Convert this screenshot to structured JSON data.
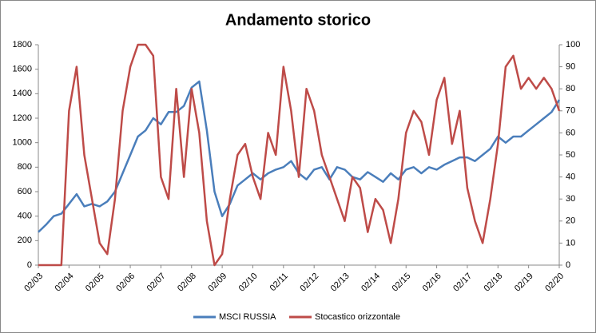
{
  "chart_data": {
    "type": "line",
    "title": "Andamento storico",
    "categories": [
      "02/03",
      null,
      null,
      null,
      "02/04",
      null,
      null,
      null,
      "02/05",
      null,
      null,
      null,
      "02/06",
      null,
      null,
      null,
      "02/07",
      null,
      null,
      null,
      "02/08",
      null,
      null,
      null,
      "02/09",
      null,
      null,
      null,
      "02/10",
      null,
      null,
      null,
      "02/11",
      null,
      null,
      null,
      "02/12",
      null,
      null,
      null,
      "02/13",
      null,
      null,
      null,
      "02/14",
      null,
      null,
      null,
      "02/15",
      null,
      null,
      null,
      "02/16",
      null,
      null,
      null,
      "02/17",
      null,
      null,
      null,
      "02/18",
      null,
      null,
      null,
      "02/19",
      null,
      null,
      null,
      "02/20"
    ],
    "series": [
      {
        "name": "MSCI RUSSIA",
        "color": "#4a7ebb",
        "axis": "y",
        "values": [
          270,
          330,
          400,
          420,
          500,
          580,
          480,
          500,
          480,
          520,
          600,
          750,
          900,
          1050,
          1100,
          1200,
          1150,
          1250,
          1250,
          1300,
          1450,
          1500,
          1100,
          600,
          400,
          500,
          650,
          700,
          750,
          700,
          750,
          780,
          800,
          850,
          750,
          700,
          780,
          800,
          700,
          800,
          780,
          720,
          700,
          760,
          720,
          680,
          750,
          700,
          780,
          800,
          750,
          800,
          780,
          820,
          850,
          880,
          880,
          850,
          900,
          950,
          1050,
          1000,
          1050,
          1050,
          1100,
          1150,
          1200,
          1250,
          1350
        ]
      },
      {
        "name": "Stocastico orizzontale",
        "color": "#be4b48",
        "axis": "y2",
        "values": [
          0,
          0,
          0,
          0,
          70,
          90,
          50,
          30,
          10,
          5,
          30,
          70,
          90,
          100,
          100,
          95,
          40,
          30,
          80,
          40,
          80,
          60,
          20,
          0,
          5,
          30,
          50,
          55,
          40,
          30,
          60,
          50,
          90,
          70,
          40,
          80,
          70,
          50,
          40,
          30,
          20,
          40,
          35,
          15,
          30,
          25,
          10,
          30,
          60,
          70,
          65,
          50,
          75,
          85,
          55,
          70,
          35,
          20,
          10,
          30,
          55,
          90,
          95,
          80,
          85,
          80,
          85,
          80,
          70
        ]
      }
    ],
    "ylim": [
      0,
      1800
    ],
    "yticks": [
      0,
      200,
      400,
      600,
      800,
      1000,
      1200,
      1400,
      1600,
      1800
    ],
    "y2lim": [
      0,
      100
    ],
    "y2ticks": [
      0,
      10,
      20,
      30,
      40,
      50,
      60,
      70,
      80,
      90,
      100
    ],
    "legend": "bottom"
  }
}
